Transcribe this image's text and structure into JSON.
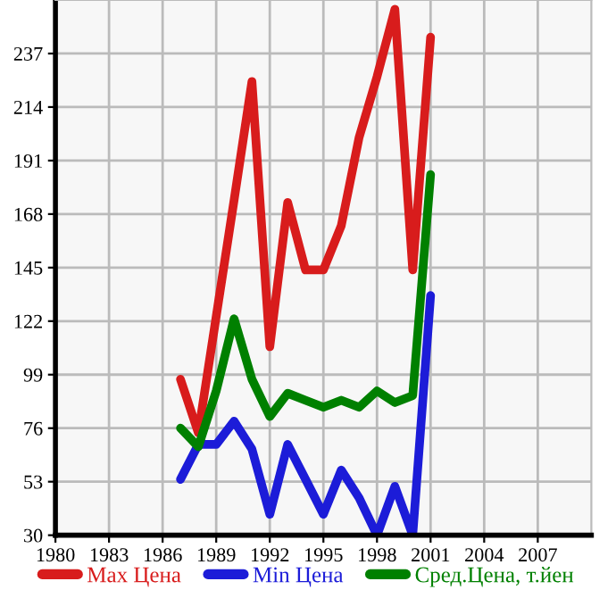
{
  "chart_data": {
    "type": "line",
    "x": [
      1987,
      1988,
      1989,
      1990,
      1991,
      1992,
      1993,
      1994,
      1995,
      1996,
      1997,
      1998,
      1999,
      2000,
      2001
    ],
    "series": [
      {
        "name": "Max Цена",
        "color": "#d81c1c",
        "values": [
          97,
          74,
          124,
          174,
          225,
          111,
          173,
          144,
          144,
          163,
          201,
          227,
          256,
          144,
          244
        ]
      },
      {
        "name": "Min Цена",
        "color": "#1c1cd8",
        "values": [
          54,
          69,
          69,
          79,
          67,
          39,
          69,
          54,
          39,
          58,
          46,
          30,
          51,
          30,
          133
        ]
      },
      {
        "name": "Сред.Цена, т.йен",
        "color": "#008000",
        "values": [
          76,
          68,
          92,
          123,
          97,
          81,
          91,
          88,
          85,
          88,
          85,
          92,
          87,
          90,
          185
        ]
      }
    ],
    "xlim": [
      1980,
      2010
    ],
    "xticks": [
      1980,
      1983,
      1986,
      1989,
      1992,
      1995,
      1998,
      2001,
      2004,
      2007
    ],
    "ylim": [
      30,
      260
    ],
    "yticks": [
      30,
      53,
      76,
      99,
      122,
      145,
      168,
      191,
      214,
      237
    ],
    "grid": true,
    "legend": "bottom",
    "line_style": "solid",
    "marker": "none"
  }
}
